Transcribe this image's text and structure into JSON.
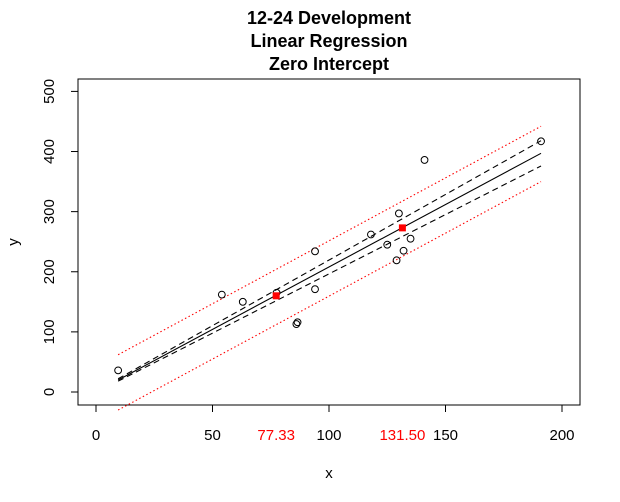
{
  "chart_data": {
    "type": "scatter",
    "title_lines": [
      "12-24 Development",
      "Linear Regression",
      "Zero Intercept"
    ],
    "xlabel": "x",
    "ylabel": "y",
    "xlim": [
      0,
      200
    ],
    "ylim": [
      0,
      500
    ],
    "xticks": [
      0,
      50,
      100,
      150,
      200
    ],
    "yticks": [
      0,
      100,
      200,
      300,
      400,
      500
    ],
    "highlight_xticks": [
      {
        "value": 77.33,
        "label": "77.33"
      },
      {
        "value": 131.5,
        "label": "131.50"
      }
    ],
    "points": [
      {
        "x": 9.5,
        "y": 36
      },
      {
        "x": 54,
        "y": 162
      },
      {
        "x": 63,
        "y": 150
      },
      {
        "x": 77.5,
        "y": 165
      },
      {
        "x": 86,
        "y": 113
      },
      {
        "x": 86.5,
        "y": 116
      },
      {
        "x": 94,
        "y": 234
      },
      {
        "x": 94,
        "y": 171
      },
      {
        "x": 118,
        "y": 262
      },
      {
        "x": 125,
        "y": 245
      },
      {
        "x": 129,
        "y": 219
      },
      {
        "x": 130,
        "y": 297
      },
      {
        "x": 132,
        "y": 235
      },
      {
        "x": 135,
        "y": 255
      },
      {
        "x": 141,
        "y": 386
      },
      {
        "x": 191,
        "y": 417
      }
    ],
    "highlight_points": [
      {
        "x": 77.33,
        "y": 160
      },
      {
        "x": 131.5,
        "y": 273
      }
    ],
    "fit_line": {
      "x": [
        9.5,
        191
      ],
      "y": [
        20,
        397
      ]
    },
    "confidence_band": {
      "lower": {
        "x": [
          9.5,
          191
        ],
        "y": [
          18,
          376
        ]
      },
      "upper": {
        "x": [
          9.5,
          191
        ],
        "y": [
          22,
          418
        ]
      }
    },
    "prediction_band": {
      "lower": {
        "x": [
          9.5,
          191
        ],
        "y": [
          -30,
          350
        ]
      },
      "upper": {
        "x": [
          9.5,
          191
        ],
        "y": [
          62,
          442
        ]
      }
    },
    "colors": {
      "points": "#000000",
      "fit": "#000000",
      "confidence": "#000000",
      "prediction": "#ff0000",
      "highlight": "#ff0000",
      "highlight_tick": "#ff0000"
    },
    "grid": false
  }
}
